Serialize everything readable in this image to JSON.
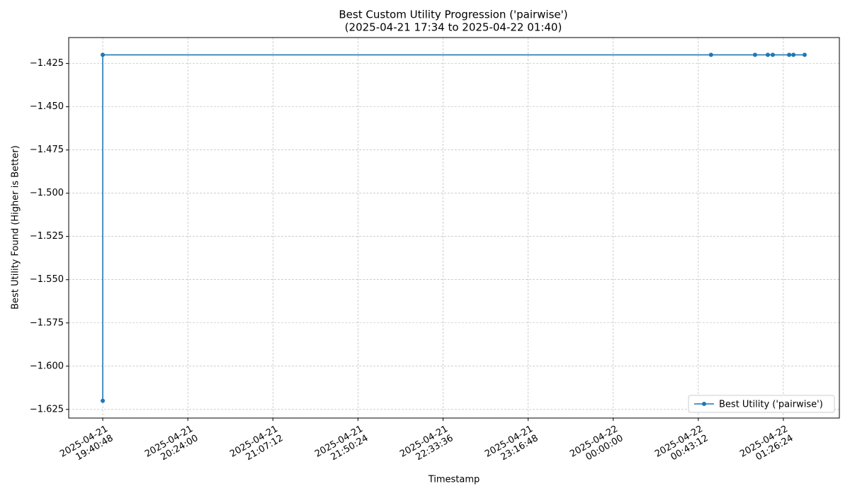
{
  "chart_data": {
    "type": "line",
    "title": "Best Custom Utility Progression ('pairwise')",
    "subtitle": "(2025-04-21 17:34 to 2025-04-22 01:40)",
    "x_label": "Timestamp",
    "y_label": "Best Utility Found (Higher is Better)",
    "x": [
      "2025-04-21 19:40:48",
      "2025-04-21 19:40:48",
      "2025-04-22 00:49:40",
      "2025-04-22 01:12:00",
      "2025-04-22 01:18:30",
      "2025-04-22 01:21:00",
      "2025-04-22 01:29:20",
      "2025-04-22 01:31:30",
      "2025-04-22 01:37:12"
    ],
    "series": [
      {
        "name": "Best Utility ('pairwise')",
        "color": "#1f77b4",
        "values": [
          -1.62,
          -1.42,
          -1.42,
          -1.42,
          -1.42,
          -1.42,
          -1.42,
          -1.42,
          -1.42
        ]
      }
    ],
    "xlim": [
      "2025-04-21 19:23:31",
      "2025-04-22 01:54:50"
    ],
    "xticks": [
      {
        "value": "2025-04-21 19:40:48",
        "label": "2025-04-21\n19:40:48"
      },
      {
        "value": "2025-04-21 20:24:00",
        "label": "2025-04-21\n20:24:00"
      },
      {
        "value": "2025-04-21 21:07:12",
        "label": "2025-04-21\n21:07:12"
      },
      {
        "value": "2025-04-21 21:50:24",
        "label": "2025-04-21\n21:50:24"
      },
      {
        "value": "2025-04-21 22:33:36",
        "label": "2025-04-21\n22:33:36"
      },
      {
        "value": "2025-04-21 23:16:48",
        "label": "2025-04-21\n23:16:48"
      },
      {
        "value": "2025-04-22 00:00:00",
        "label": "2025-04-22\n00:00:00"
      },
      {
        "value": "2025-04-22 00:43:12",
        "label": "2025-04-22\n00:43:12"
      },
      {
        "value": "2025-04-22 01:26:24",
        "label": "2025-04-22\n01:26:24"
      }
    ],
    "ylim": [
      -1.63,
      -1.41
    ],
    "yticks": [
      {
        "value": -1.625,
        "label": "−1.625"
      },
      {
        "value": -1.6,
        "label": "−1.600"
      },
      {
        "value": -1.575,
        "label": "−1.575"
      },
      {
        "value": -1.55,
        "label": "−1.550"
      },
      {
        "value": -1.525,
        "label": "−1.525"
      },
      {
        "value": -1.5,
        "label": "−1.500"
      },
      {
        "value": -1.475,
        "label": "−1.475"
      },
      {
        "value": -1.45,
        "label": "−1.450"
      },
      {
        "value": -1.425,
        "label": "−1.425"
      }
    ],
    "grid": true,
    "legend": "lower right"
  }
}
